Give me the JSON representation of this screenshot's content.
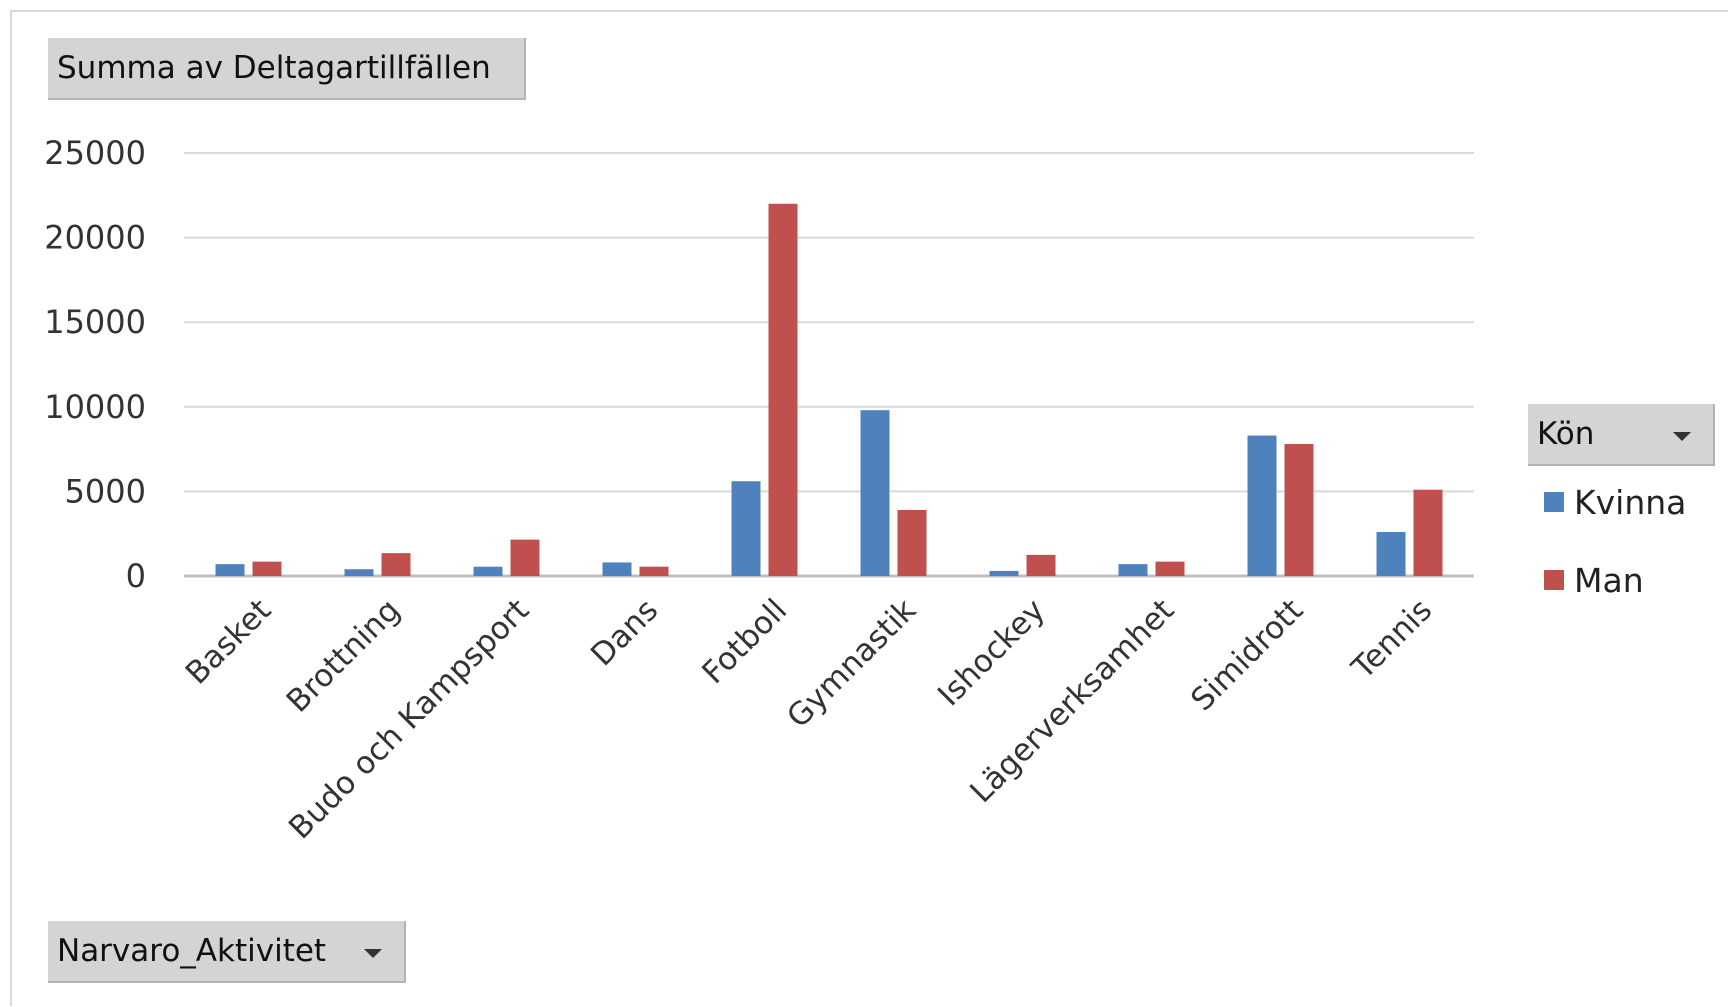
{
  "field_buttons": {
    "values_field": "Summa av Deltagartillfällen",
    "legend_field": "Kön",
    "axis_field": "Narvaro_Aktivitet"
  },
  "chart_data": {
    "type": "bar",
    "categories": [
      "Basket",
      "Brottning",
      "Budo och Kampsport",
      "Dans",
      "Fotboll",
      "Gymnastik",
      "Ishockey",
      "Lägerverksamhet",
      "Simidrott",
      "Tennis"
    ],
    "series": [
      {
        "name": "Kvinna",
        "color": "#4f81bd",
        "values": [
          700,
          400,
          550,
          800,
          5600,
          9800,
          300,
          700,
          8300,
          2600
        ]
      },
      {
        "name": "Man",
        "color": "#c0504d",
        "values": [
          850,
          1350,
          2150,
          550,
          22000,
          3900,
          1250,
          850,
          7800,
          5100
        ]
      }
    ],
    "yticks": [
      "0",
      "5000",
      "10000",
      "15000",
      "20000",
      "25000"
    ],
    "ylim": [
      0,
      25000
    ],
    "grid": true,
    "legend_position": "right"
  }
}
